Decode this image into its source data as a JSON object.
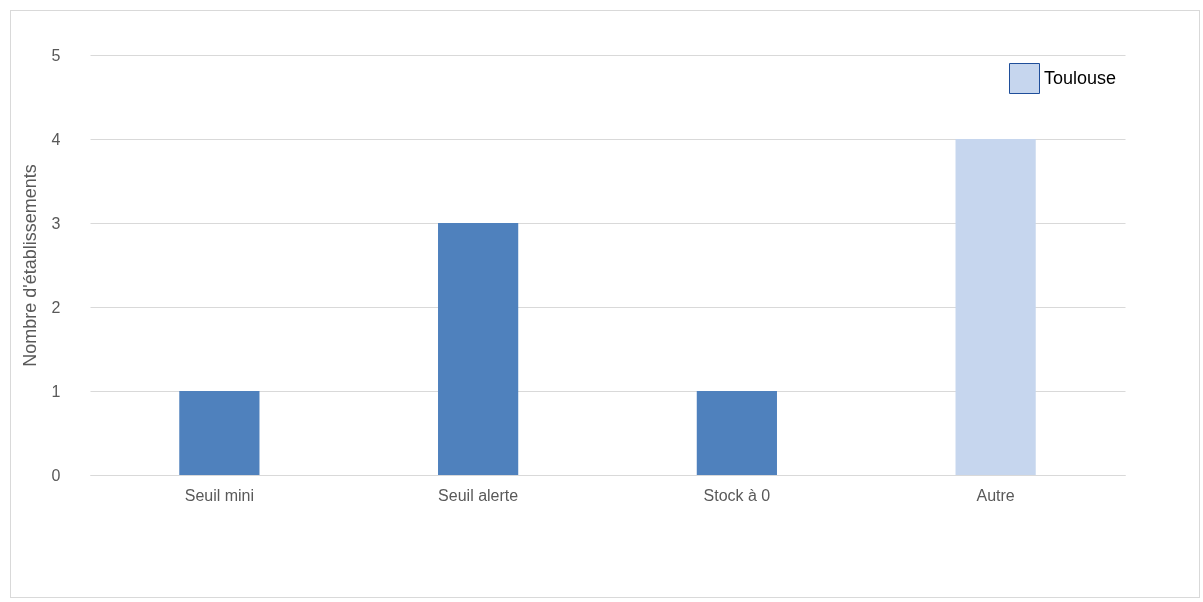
{
  "chart_data": {
    "type": "bar",
    "ylabel": "Nombre d'établissements",
    "categories": [
      "Seuil mini",
      "Seuil alerte",
      "Stock à 0",
      "Autre"
    ],
    "series": [
      {
        "color": "#4f81bd",
        "values": [
          1,
          3,
          1,
          null
        ]
      },
      {
        "name": "Toulouse",
        "color": "#c6d6ee",
        "values": [
          null,
          null,
          null,
          4
        ]
      }
    ],
    "ylim": [
      0,
      5
    ],
    "yticks": [
      0,
      1,
      2,
      3,
      4,
      5
    ],
    "grid": "y",
    "legend": "top right"
  }
}
